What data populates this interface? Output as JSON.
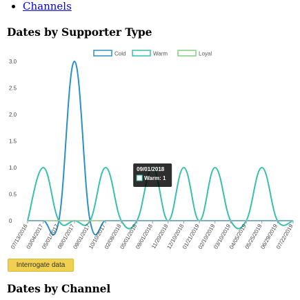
{
  "nav": {
    "items": [
      {
        "label": "Channels"
      }
    ]
  },
  "section1": {
    "title": "Dates by Supporter Type"
  },
  "section2": {
    "title": "Dates by Channel"
  },
  "button": {
    "label": "Interrogate data"
  },
  "tooltip": {
    "title": "09/01/2018",
    "series_label": "Warm:",
    "value": "1"
  },
  "chart_data": {
    "type": "line",
    "ylim": [
      0,
      3.0
    ],
    "yticks": [
      0,
      0.5,
      1.0,
      1.5,
      2.0,
      2.5,
      3.0
    ],
    "ytick_labels": [
      "0",
      "0.5",
      "1.0",
      "1.5",
      "2.0",
      "2.5",
      "3.0"
    ],
    "x": [
      "07/13/2016",
      "03/04/2017",
      "05/01/2017",
      "08/01/2017",
      "09/01/2017",
      "10/10/2017",
      "02/08/2018",
      "05/01/2018",
      "09/01/2018",
      "11/20/2018",
      "12/10/2018",
      "01/21/2019",
      "02/10/2019",
      "03/10/2019",
      "04/05/2019",
      "05/25/2019",
      "06/29/2019",
      "07/22/2019"
    ],
    "series": [
      {
        "name": "Cold",
        "values": [
          0,
          0,
          0,
          3,
          0,
          0,
          0,
          0,
          0,
          0,
          0,
          0,
          0,
          0,
          0,
          0,
          0,
          0
        ]
      },
      {
        "name": "Warm",
        "values": [
          0,
          1,
          0,
          0,
          0,
          1,
          0,
          0,
          1,
          0,
          1,
          0,
          1,
          0,
          0,
          1,
          0,
          0
        ]
      },
      {
        "name": "Loyal",
        "values": [
          0,
          0,
          0,
          0,
          0,
          0,
          0,
          0,
          0,
          0,
          0,
          0,
          0,
          0,
          0,
          0,
          0,
          0
        ]
      }
    ],
    "legend": "top-right",
    "colors": {
      "cold": "#2a8fc8",
      "warm": "#36c0a8",
      "loyal": "#7fd07a"
    }
  }
}
